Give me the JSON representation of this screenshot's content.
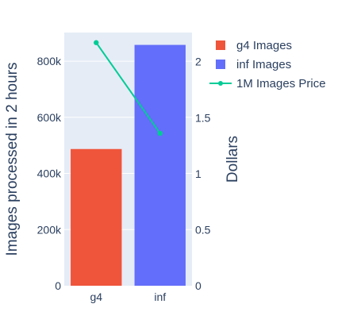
{
  "chart_data": {
    "type": "bar",
    "categories": [
      "g4",
      "inf"
    ],
    "series": [
      {
        "name": "g4 Images",
        "kind": "bar",
        "axis": "y",
        "values": [
          487000,
          null
        ],
        "color": "#ef553b"
      },
      {
        "name": "inf Images",
        "kind": "bar",
        "axis": "y",
        "values": [
          null,
          858000
        ],
        "color": "#636efa"
      },
      {
        "name": "1M Images Price",
        "kind": "line",
        "axis": "y2",
        "values": [
          2.17,
          1.36
        ],
        "color": "#00cc96"
      }
    ],
    "ylabel": "Images processed in 2 hours",
    "y2label": "Dollars",
    "ylim": [
      0,
      902000
    ],
    "y2lim": [
      0,
      2.26
    ],
    "yticks": [
      {
        "value": 0,
        "label": "0"
      },
      {
        "value": 200000,
        "label": "200k"
      },
      {
        "value": 400000,
        "label": "400k"
      },
      {
        "value": 600000,
        "label": "600k"
      },
      {
        "value": 800000,
        "label": "800k"
      }
    ],
    "y2ticks": [
      {
        "value": 0,
        "label": "0"
      },
      {
        "value": 0.5,
        "label": "0.5"
      },
      {
        "value": 1,
        "label": "1"
      },
      {
        "value": 1.5,
        "label": "1.5"
      },
      {
        "value": 2,
        "label": "2"
      }
    ],
    "grid": true,
    "legend": "top-right",
    "plot_background": "#e5ecf6"
  }
}
